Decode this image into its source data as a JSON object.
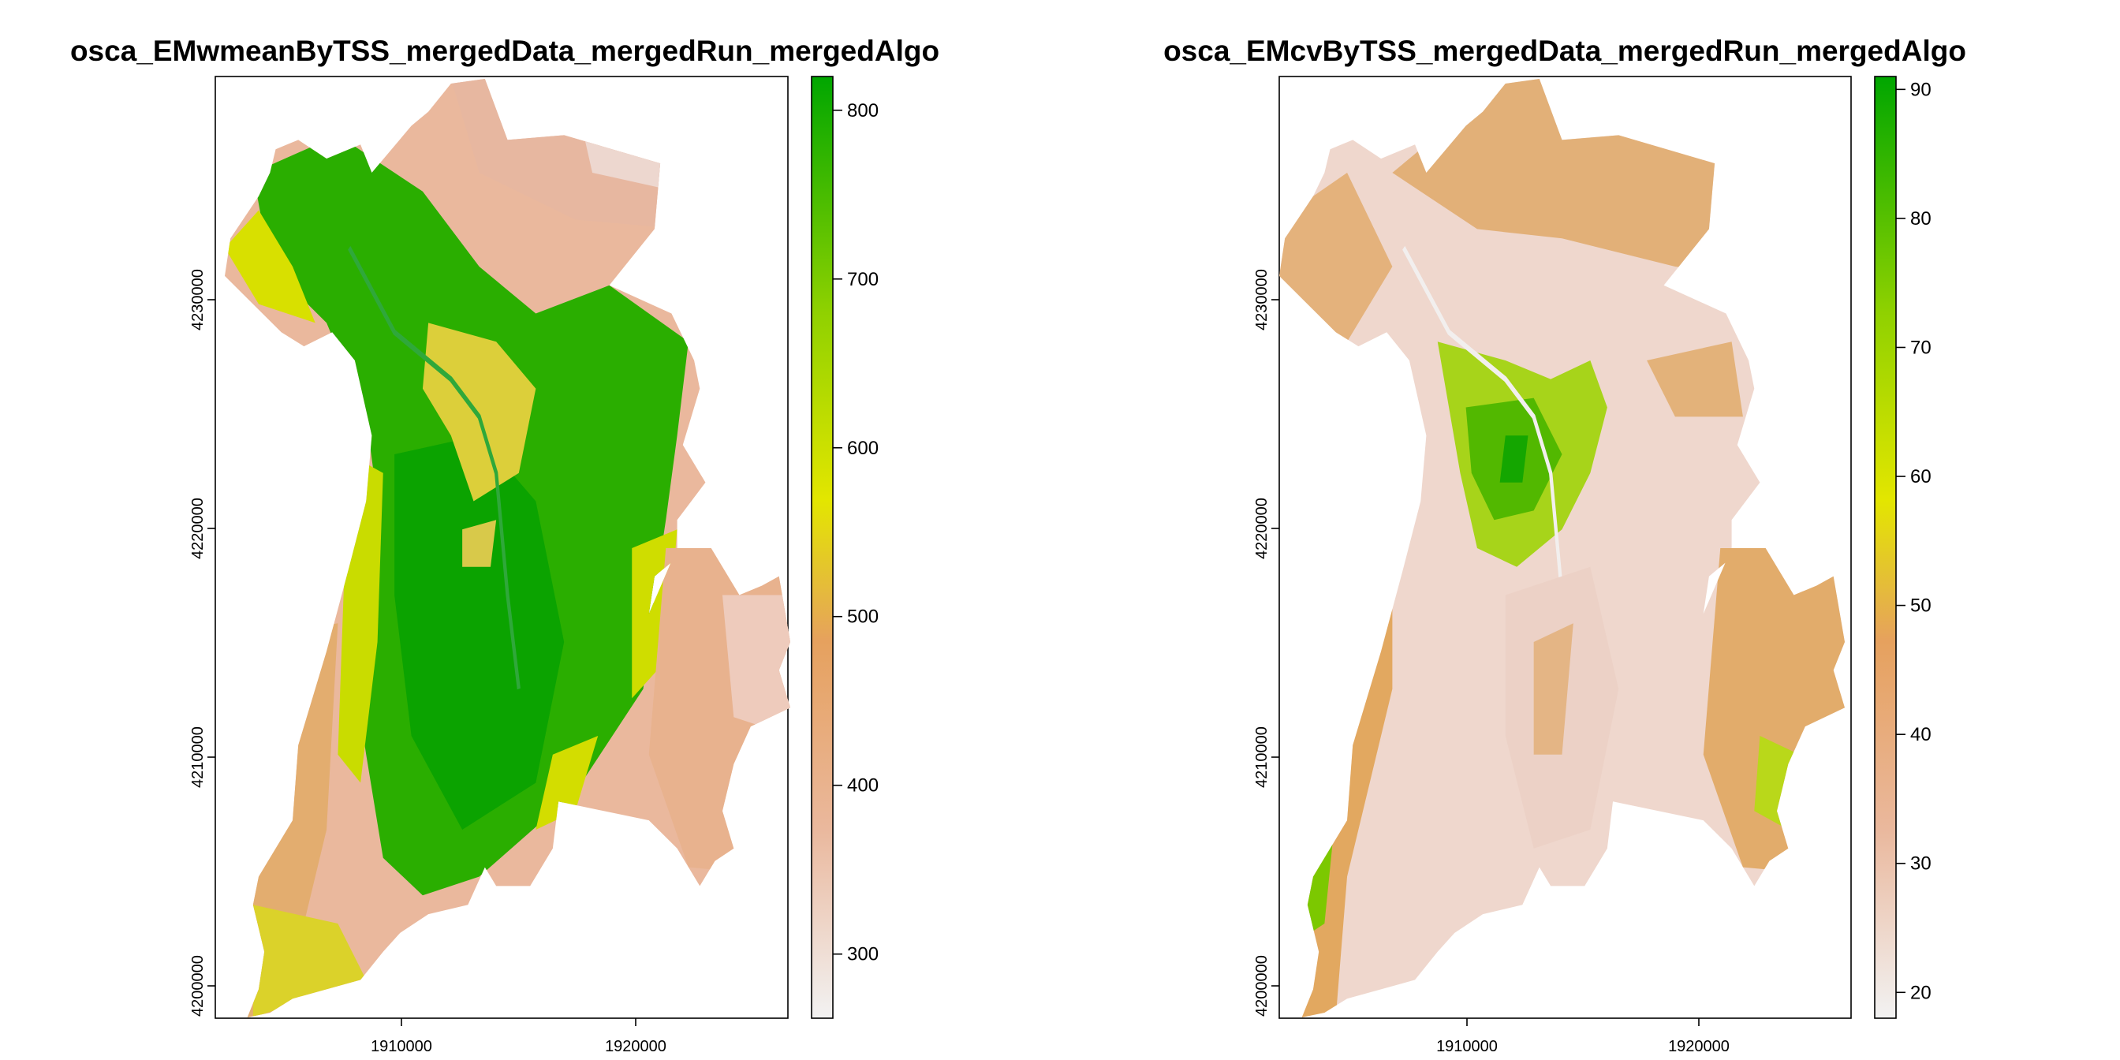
{
  "chart_data": [
    {
      "type": "heatmap",
      "title": "osca_EMwmeanByTSS_mergedData_mergedRun_mergedAlgo",
      "xlabel": "",
      "ylabel": "",
      "x_ticks": [
        1910000,
        1920000
      ],
      "y_ticks": [
        4200000,
        4210000,
        4220000,
        4230000
      ],
      "xlim": [
        1901000,
        1926000
      ],
      "ylim": [
        4199900,
        4241100
      ],
      "colorbar": {
        "range": [
          262,
          820
        ],
        "ticks": [
          300,
          400,
          500,
          600,
          700,
          800
        ],
        "colors": [
          "#f2f2f2",
          "#eab89d",
          "#e6a15e",
          "#e3e600",
          "#8fd100",
          "#00a600"
        ]
      },
      "dominant_value": 680
    },
    {
      "type": "heatmap",
      "title": "osca_EMcvByTSS_mergedData_mergedRun_mergedAlgo",
      "xlabel": "",
      "ylabel": "",
      "x_ticks": [
        1910000,
        1920000
      ],
      "y_ticks": [
        4200000,
        4210000,
        4220000,
        4230000
      ],
      "xlim": [
        1901000,
        1926000
      ],
      "ylim": [
        4199900,
        4241100
      ],
      "colorbar": {
        "range": [
          18,
          91
        ],
        "ticks": [
          20,
          30,
          40,
          50,
          60,
          70,
          80,
          90
        ],
        "colors": [
          "#f2f2f2",
          "#eab89d",
          "#e6a15e",
          "#e3e600",
          "#8fd100",
          "#00a600"
        ]
      },
      "dominant_value": 33
    }
  ]
}
